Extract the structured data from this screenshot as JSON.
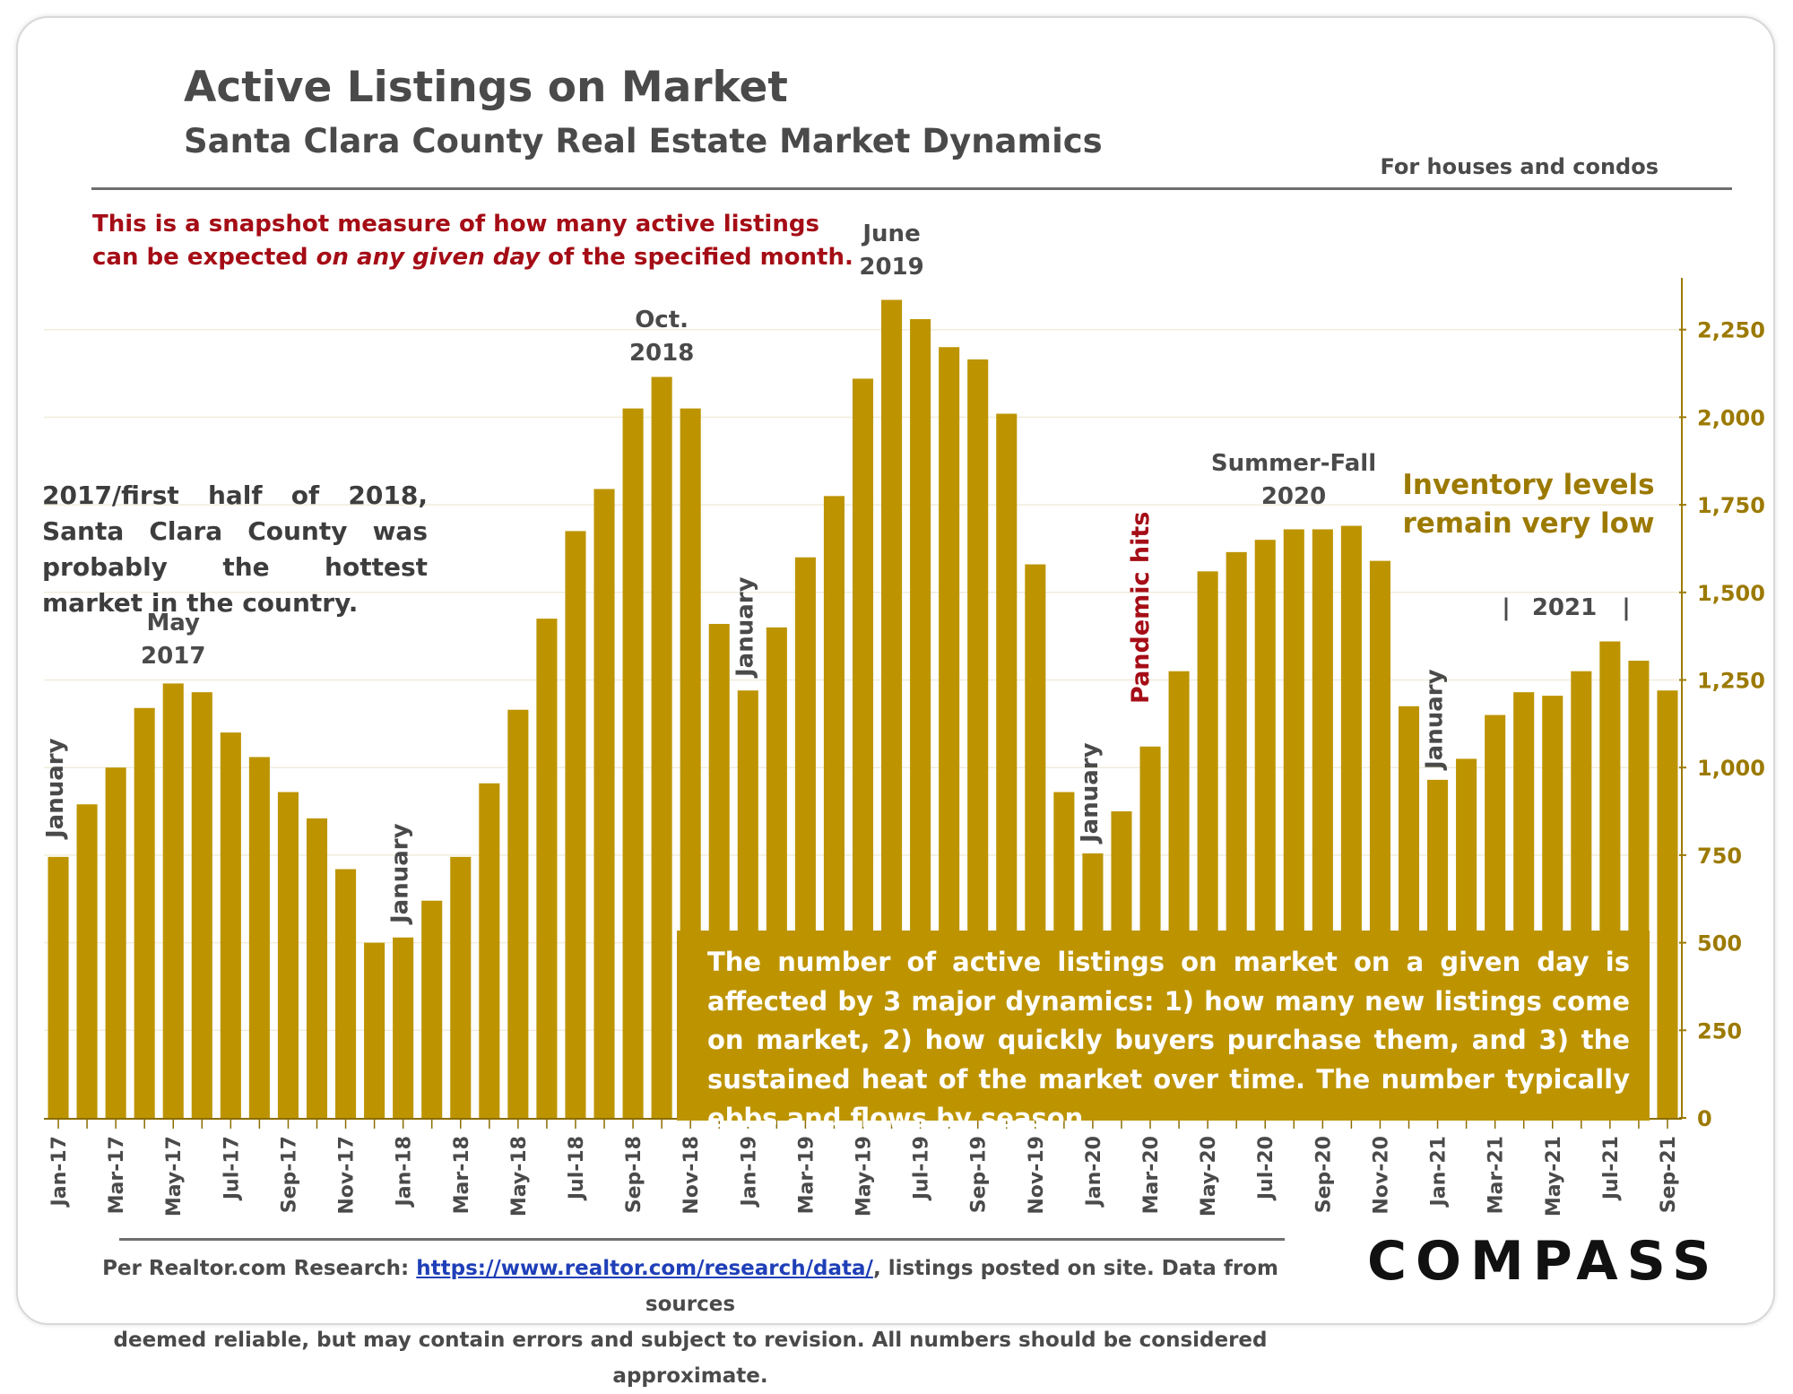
{
  "header": {
    "title": "Active Listings on Market",
    "subtitle": "Santa Clara County Real Estate Market Dynamics",
    "scope": "For houses and condos"
  },
  "notes": {
    "snapshot_line1": "This is a snapshot measure of how many active listings",
    "snapshot_line2_pre": "can be expected ",
    "snapshot_line2_em": "on any given day",
    "snapshot_line2_post": " of the specified month.",
    "hottest_market": "2017/first half of 2018, Santa Clara County was probably the hottest market in the country.",
    "inventory": "Inventory levels remain very low",
    "dynamics": "The number of active listings on market on a given day is affected by 3 major dynamics: 1) how many new listings come on market, 2) how quickly buyers purchase them, and 3) the sustained heat of the market over time. The number typically ebbs and flows by season."
  },
  "footer": {
    "prefix": "Per Realtor.com Research: ",
    "link": "https://www.realtor.com/research/data/",
    "suffix": ", listings posted on site. Data from sources",
    "line2": "deemed reliable, but may contain errors and subject to revision. All numbers should be considered approximate."
  },
  "brand": {
    "logo": "COMPASS"
  },
  "colors": {
    "bar": "#bd9400",
    "axis": "#9c7a00",
    "accent_red": "#a50d16",
    "text": "#4a4a4a"
  },
  "chart_data": {
    "type": "bar",
    "categories": [
      "Jan-17",
      "Feb-17",
      "Mar-17",
      "Apr-17",
      "May-17",
      "Jun-17",
      "Jul-17",
      "Aug-17",
      "Sep-17",
      "Oct-17",
      "Nov-17",
      "Dec-17",
      "Jan-18",
      "Feb-18",
      "Mar-18",
      "Apr-18",
      "May-18",
      "Jun-18",
      "Jul-18",
      "Aug-18",
      "Sep-18",
      "Oct-18",
      "Nov-18",
      "Dec-18",
      "Jan-19",
      "Feb-19",
      "Mar-19",
      "Apr-19",
      "May-19",
      "Jun-19",
      "Jul-19",
      "Aug-19",
      "Sep-19",
      "Oct-19",
      "Nov-19",
      "Dec-19",
      "Jan-20",
      "Feb-20",
      "Mar-20",
      "Apr-20",
      "May-20",
      "Jun-20",
      "Jul-20",
      "Aug-20",
      "Sep-20",
      "Oct-20",
      "Nov-20",
      "Dec-20",
      "Jan-21",
      "Feb-21",
      "Mar-21",
      "Apr-21",
      "May-21",
      "Jun-21",
      "Jul-21",
      "Aug-21",
      "Sep-21"
    ],
    "tick_labels": [
      "Jan-17",
      "Mar-17",
      "May-17",
      "Jul-17",
      "Sep-17",
      "Nov-17",
      "Jan-18",
      "Mar-18",
      "May-18",
      "Jul-18",
      "Sep-18",
      "Nov-18",
      "Jan-19",
      "Mar-19",
      "May-19",
      "Jul-19",
      "Sep-19",
      "Nov-19",
      "Jan-20",
      "Mar-20",
      "May-20",
      "Jul-20",
      "Sep-20",
      "Nov-20",
      "Jan-21",
      "Mar-21",
      "May-21",
      "Jul-21",
      "Sep-21"
    ],
    "values": [
      745,
      895,
      1000,
      1170,
      1240,
      1215,
      1100,
      1030,
      930,
      855,
      710,
      500,
      515,
      620,
      745,
      955,
      1165,
      1425,
      1675,
      1795,
      2025,
      2115,
      2025,
      1410,
      1220,
      1400,
      1600,
      1775,
      2110,
      2335,
      2280,
      2200,
      2165,
      2010,
      1580,
      930,
      755,
      875,
      1060,
      1275,
      1560,
      1615,
      1650,
      1680,
      1680,
      1690,
      1590,
      1175,
      965,
      1025,
      1150,
      1215,
      1205,
      1275,
      1360,
      1305,
      1220
    ],
    "y_ticks": [
      "0",
      "250",
      "500",
      "750",
      "1,000",
      "1,250",
      "1,500",
      "1,750",
      "2,000",
      "2,250"
    ],
    "ylim": [
      0,
      2400
    ],
    "y_axis_side": "right",
    "grid": "light horizontal",
    "annotations": {
      "may_2017": [
        "May",
        "2017"
      ],
      "oct_2018": [
        "Oct.",
        "2018"
      ],
      "june_2019": [
        "June",
        "2019"
      ],
      "summer_fall_2020": [
        "Summer-Fall",
        "2020"
      ],
      "year_2021": "2021",
      "january": "January",
      "pandemic": "Pandemic hits"
    }
  }
}
